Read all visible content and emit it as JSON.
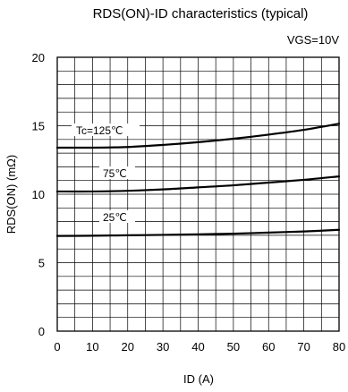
{
  "chart_data": {
    "type": "line",
    "title": "RDS(ON)-ID characteristics (typical)",
    "condition": "VGS=10V",
    "xlabel": "ID (A)",
    "ylabel": "RDS(ON) (mΩ)",
    "xlim": [
      0,
      80
    ],
    "ylim": [
      0,
      20
    ],
    "x_ticks": [
      0,
      10,
      20,
      30,
      40,
      50,
      60,
      70,
      80
    ],
    "y_ticks": [
      0,
      5,
      10,
      15,
      20
    ],
    "x_minor_step": 5,
    "y_minor_step": 1,
    "grid": true,
    "series": [
      {
        "name": "Tc=125℃",
        "x": [
          0,
          10,
          20,
          30,
          40,
          50,
          60,
          70,
          80
        ],
        "y": [
          13.4,
          13.4,
          13.45,
          13.6,
          13.8,
          14.05,
          14.35,
          14.7,
          15.15
        ]
      },
      {
        "name": "75℃",
        "x": [
          0,
          10,
          20,
          30,
          40,
          50,
          60,
          70,
          80
        ],
        "y": [
          10.2,
          10.2,
          10.25,
          10.35,
          10.5,
          10.65,
          10.85,
          11.05,
          11.3
        ]
      },
      {
        "name": "25℃",
        "x": [
          0,
          10,
          20,
          30,
          40,
          50,
          60,
          70,
          80
        ],
        "y": [
          6.95,
          6.97,
          7.0,
          7.03,
          7.07,
          7.12,
          7.2,
          7.28,
          7.4
        ]
      }
    ]
  }
}
